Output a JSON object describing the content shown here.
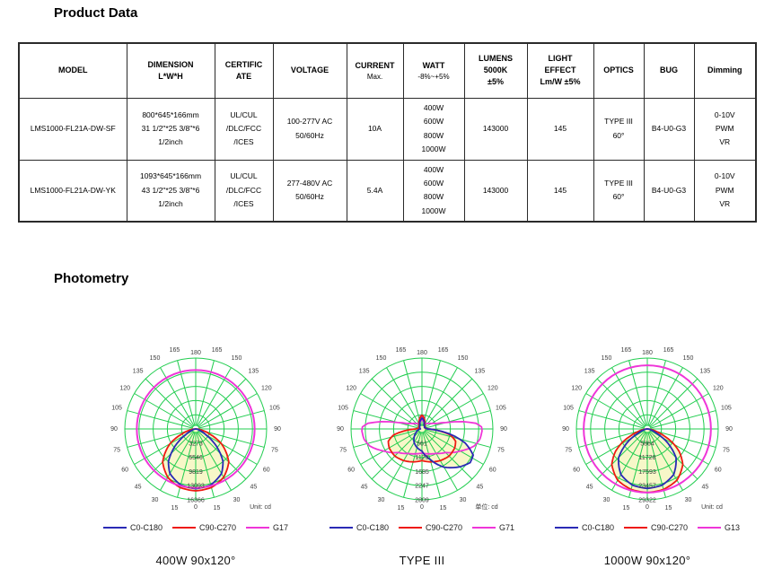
{
  "headings": {
    "product_data": "Product Data",
    "photometry": "Photometry"
  },
  "table": {
    "columns": [
      {
        "key": "model",
        "lines": [
          "MODEL"
        ]
      },
      {
        "key": "dimension",
        "lines": [
          "DIMENSION",
          "L*W*H"
        ]
      },
      {
        "key": "certificate",
        "lines": [
          "CERTIFIC",
          "ATE"
        ]
      },
      {
        "key": "voltage",
        "lines": [
          "VOLTAGE"
        ]
      },
      {
        "key": "current",
        "lines": [
          "CURRENT"
        ],
        "sub": "Max."
      },
      {
        "key": "watt",
        "lines": [
          "WATT"
        ],
        "sub": "-8%~+5%"
      },
      {
        "key": "lumens",
        "lines": [
          "LUMENS",
          "5000K",
          "±5%"
        ]
      },
      {
        "key": "light_effect",
        "lines": [
          "LIGHT",
          "EFFECT",
          "Lm/W ±5%"
        ]
      },
      {
        "key": "optics",
        "lines": [
          "OPTICS"
        ]
      },
      {
        "key": "bug",
        "lines": [
          "BUG"
        ]
      },
      {
        "key": "dimming",
        "lines": [
          "Dimming"
        ]
      }
    ],
    "rows": [
      {
        "model": "LMS1000-FL21A-DW-SF",
        "dimension": [
          "800*645*166mm",
          "31 1/2\"*25 3/8\"*6",
          "1/2inch"
        ],
        "certificate": [
          "UL/CUL",
          "/DLC/FCC",
          "/ICES"
        ],
        "voltage": [
          "100-277V AC",
          "50/60Hz"
        ],
        "current": "10A",
        "watt": [
          "400W",
          "600W",
          "800W",
          "1000W"
        ],
        "lumens": "143000",
        "light_effect": "145",
        "optics": [
          "TYPE III",
          "60°"
        ],
        "bug": "B4-U0-G3",
        "dimming": [
          "0-10V",
          "PWM",
          "VR"
        ]
      },
      {
        "model": "LMS1000-FL21A-DW-YK",
        "dimension": [
          "1093*645*166mm",
          "43 1/2\"*25 3/8\"*6",
          "1/2inch"
        ],
        "certificate": [
          "UL/CUL",
          "/DLC/FCC",
          "/ICES"
        ],
        "voltage": [
          "277-480V AC",
          "50/60Hz"
        ],
        "current": "5.4A",
        "watt": [
          "400W",
          "600W",
          "800W",
          "1000W"
        ],
        "lumens": "143000",
        "light_effect": "145",
        "optics": [
          "TYPE III",
          "60°"
        ],
        "bug": "B4-U0-G3",
        "dimming": [
          "0-10V",
          "PWM",
          "VR"
        ]
      }
    ]
  },
  "chart_data": [
    {
      "type": "polar_photometric",
      "caption": "400W  90x120°",
      "unit_label": "Unit: cd",
      "grid_color": "#21cd4f",
      "angle_ticks": [
        0,
        15,
        30,
        45,
        60,
        75,
        90,
        105,
        120,
        135,
        150,
        165,
        180
      ],
      "ring_labels": [
        "3273",
        "6546",
        "9819",
        "13093",
        "16366"
      ],
      "r_max": 16366,
      "legend": [
        {
          "label": "C0-C180",
          "color": "#2a2ab5"
        },
        {
          "label": "C90-C270",
          "color": "#ee1a12"
        },
        {
          "label": "G17",
          "color": "#ef35d8"
        }
      ],
      "series": [
        {
          "name": "C90-C270",
          "color": "#ee1a12",
          "symmetric": true,
          "fill": "#f7f7c8",
          "points": [
            [
              0,
              14300
            ],
            [
              15,
              14000
            ],
            [
              30,
              12900
            ],
            [
              45,
              10800
            ],
            [
              60,
              6900
            ],
            [
              70,
              3400
            ],
            [
              80,
              1150
            ],
            [
              90,
              0
            ]
          ]
        },
        {
          "name": "C0-C180",
          "color": "#2a2ab5",
          "symmetric": true,
          "fill": "#f7f7c8",
          "points": [
            [
              0,
              13800
            ],
            [
              15,
              13400
            ],
            [
              30,
              11900
            ],
            [
              40,
              9800
            ],
            [
              50,
              6300
            ],
            [
              60,
              2700
            ],
            [
              70,
              950
            ],
            [
              80,
              280
            ],
            [
              90,
              0
            ]
          ]
        },
        {
          "name": "G17",
          "color": "#ef35d8",
          "circle_value": 13600
        }
      ]
    },
    {
      "type": "polar_photometric",
      "caption": "TYPE III",
      "unit_label": "单位: cd",
      "grid_color": "#21cd4f",
      "angle_ticks": [
        0,
        15,
        30,
        45,
        60,
        75,
        90,
        105,
        120,
        135,
        150,
        165,
        180
      ],
      "ring_labels": [
        "561",
        "1123",
        "1685",
        "2247",
        "2809"
      ],
      "r_max": 2809,
      "legend": [
        {
          "label": "C0-C180",
          "color": "#2a2ab5"
        },
        {
          "label": "C90-C270",
          "color": "#ee1a12"
        },
        {
          "label": "G71",
          "color": "#ef35d8"
        }
      ],
      "series": [
        {
          "name": "G71",
          "color": "#ef35d8",
          "symmetric": true,
          "points": [
            [
              0,
              950
            ],
            [
              15,
              1020
            ],
            [
              30,
              1120
            ],
            [
              45,
              1320
            ],
            [
              60,
              1750
            ],
            [
              72,
              2180
            ],
            [
              80,
              2330
            ],
            [
              88,
              2380
            ],
            [
              92,
              2360
            ],
            [
              96,
              2150
            ],
            [
              100,
              1650
            ],
            [
              105,
              980
            ],
            [
              110,
              620
            ],
            [
              120,
              430
            ],
            [
              135,
              300
            ],
            [
              150,
              250
            ],
            [
              160,
              240
            ],
            [
              168,
              300
            ],
            [
              173,
              520
            ],
            [
              177,
              430
            ],
            [
              180,
              330
            ]
          ]
        },
        {
          "name": "C90-C270",
          "color": "#ee1a12",
          "symmetric": true,
          "fill": "#f7f7c8",
          "points": [
            [
              0,
              1250
            ],
            [
              15,
              1350
            ],
            [
              30,
              1450
            ],
            [
              45,
              1520
            ],
            [
              60,
              1500
            ],
            [
              70,
              1420
            ],
            [
              78,
              1150
            ],
            [
              84,
              700
            ],
            [
              90,
              250
            ],
            [
              100,
              130
            ],
            [
              120,
              140
            ],
            [
              150,
              210
            ],
            [
              170,
              450
            ],
            [
              180,
              545
            ]
          ]
        },
        {
          "name": "C0-C180",
          "color": "#2a2ab5",
          "fill": "#f7f7c8",
          "points": [
            [
              -177,
              400
            ],
            [
              -170,
              350
            ],
            [
              -150,
              160
            ],
            [
              -120,
              100
            ],
            [
              -90,
              60
            ],
            [
              -60,
              260
            ],
            [
              -45,
              430
            ],
            [
              -30,
              620
            ],
            [
              -15,
              760
            ],
            [
              0,
              880
            ],
            [
              15,
              1250
            ],
            [
              30,
              1750
            ],
            [
              45,
              2120
            ],
            [
              55,
              2330
            ],
            [
              63,
              2280
            ],
            [
              72,
              1800
            ],
            [
              80,
              1100
            ],
            [
              86,
              500
            ],
            [
              90,
              200
            ],
            [
              120,
              110
            ],
            [
              150,
              170
            ],
            [
              170,
              360
            ],
            [
              180,
              430
            ]
          ]
        }
      ]
    },
    {
      "type": "polar_photometric",
      "caption": "1000W  90x120°",
      "unit_label": "Unit: cd",
      "grid_color": "#21cd4f",
      "angle_ticks": [
        0,
        15,
        30,
        45,
        60,
        75,
        90,
        105,
        120,
        135,
        150,
        165,
        180
      ],
      "ring_labels": [
        "5864",
        "11728",
        "17593",
        "23457",
        "29322"
      ],
      "r_max": 29322,
      "legend": [
        {
          "label": "C0-C180",
          "color": "#2a2ab5"
        },
        {
          "label": "C90-C270",
          "color": "#ee1a12"
        },
        {
          "label": "G13",
          "color": "#ef35d8"
        }
      ],
      "series": [
        {
          "name": "C90-C270",
          "color": "#ee1a12",
          "symmetric": true,
          "fill": "#f7f7c8",
          "points": [
            [
              0,
              26300
            ],
            [
              15,
              25900
            ],
            [
              30,
              24500
            ],
            [
              45,
              20800
            ],
            [
              55,
              16000
            ],
            [
              62,
              11500
            ],
            [
              68,
              7200
            ],
            [
              75,
              3600
            ],
            [
              82,
              1500
            ],
            [
              90,
              0
            ]
          ]
        },
        {
          "name": "C0-C180",
          "color": "#2a2ab5",
          "symmetric": true,
          "fill": "#f7f7c8",
          "points": [
            [
              0,
              24600
            ],
            [
              15,
              24000
            ],
            [
              30,
              21800
            ],
            [
              45,
              16800
            ],
            [
              55,
              10500
            ],
            [
              65,
              4200
            ],
            [
              75,
              1400
            ],
            [
              85,
              350
            ],
            [
              90,
              0
            ]
          ]
        },
        {
          "name": "G13",
          "color": "#ef35d8",
          "circle_value": 26300
        }
      ]
    }
  ]
}
